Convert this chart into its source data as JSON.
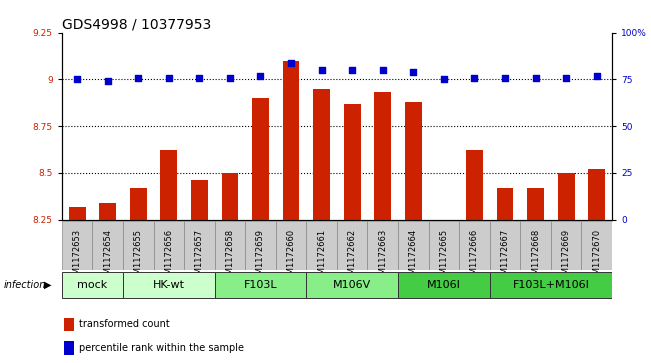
{
  "title": "GDS4998 / 10377953",
  "samples": [
    "GSM1172653",
    "GSM1172654",
    "GSM1172655",
    "GSM1172656",
    "GSM1172657",
    "GSM1172658",
    "GSM1172659",
    "GSM1172660",
    "GSM1172661",
    "GSM1172662",
    "GSM1172663",
    "GSM1172664",
    "GSM1172665",
    "GSM1172666",
    "GSM1172667",
    "GSM1172668",
    "GSM1172669",
    "GSM1172670"
  ],
  "bar_values": [
    8.32,
    8.34,
    8.42,
    8.62,
    8.46,
    8.5,
    8.9,
    9.1,
    8.95,
    8.87,
    8.93,
    8.88,
    8.25,
    8.62,
    8.42,
    8.42,
    8.5,
    8.52
  ],
  "percentile_values": [
    75,
    74,
    76,
    76,
    76,
    76,
    77,
    84,
    80,
    80,
    80,
    79,
    75,
    76,
    76,
    76,
    76,
    77
  ],
  "ylim_left": [
    8.25,
    9.25
  ],
  "ylim_right": [
    0,
    100
  ],
  "yticks_left": [
    8.25,
    8.5,
    8.75,
    9.0,
    9.25
  ],
  "ytick_labels_left": [
    "8.25",
    "8.5",
    "8.75",
    "9",
    "9.25"
  ],
  "yticks_right": [
    0,
    25,
    50,
    75,
    100
  ],
  "ytick_labels_right": [
    "0",
    "25",
    "50",
    "75",
    "100%"
  ],
  "hlines": [
    8.5,
    8.75,
    9.0
  ],
  "bar_color": "#cc2200",
  "dot_color": "#0000cc",
  "bar_width": 0.55,
  "groups": [
    {
      "label": "mock",
      "start": 0,
      "end": 2,
      "color": "#ccffcc"
    },
    {
      "label": "HK-wt",
      "start": 2,
      "end": 5,
      "color": "#ccffcc"
    },
    {
      "label": "F103L",
      "start": 5,
      "end": 8,
      "color": "#88ee88"
    },
    {
      "label": "M106V",
      "start": 8,
      "end": 11,
      "color": "#88ee88"
    },
    {
      "label": "M106I",
      "start": 11,
      "end": 14,
      "color": "#44cc44"
    },
    {
      "label": "F103L+M106I",
      "start": 14,
      "end": 18,
      "color": "#44cc44"
    }
  ],
  "infection_label": "infection",
  "legend_bar_label": "transformed count",
  "legend_dot_label": "percentile rank within the sample",
  "title_fontsize": 10,
  "tick_fontsize": 6.5,
  "sample_fontsize": 6,
  "group_fontsize": 8
}
